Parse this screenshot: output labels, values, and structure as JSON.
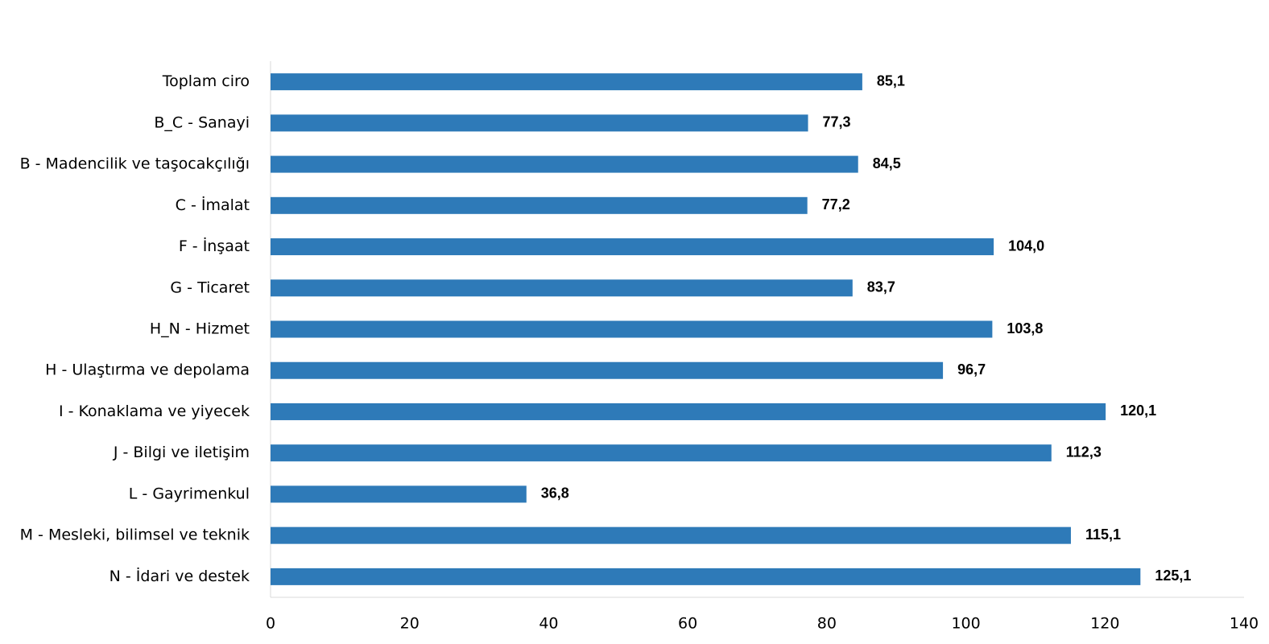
{
  "chart_data": {
    "type": "bar",
    "orientation": "horizontal",
    "categories": [
      "Toplam ciro",
      "B_C - Sanayi",
      "B - Madencilik ve taşocakçılığı",
      "C - İmalat",
      "F - İnşaat",
      "G - Ticaret",
      "H_N - Hizmet",
      "H - Ulaştırma ve depolama",
      "I - Konaklama ve yiyecek",
      "J - Bilgi ve iletişim",
      "L - Gayrimenkul",
      "M - Mesleki, bilimsel ve teknik",
      "N - İdari ve destek"
    ],
    "values": [
      85.1,
      77.3,
      84.5,
      77.2,
      104.0,
      83.7,
      103.8,
      96.7,
      120.1,
      112.3,
      36.8,
      115.1,
      125.1
    ],
    "value_labels": [
      "85,1",
      "77,3",
      "84,5",
      "77,2",
      "104,0",
      "83,7",
      "103,8",
      "96,7",
      "120,1",
      "112,3",
      "36,8",
      "115,1",
      "125,1"
    ],
    "color": "#2e7ab8",
    "xlim": [
      0,
      140
    ],
    "xticks": [
      0,
      20,
      40,
      60,
      80,
      100,
      120,
      140
    ],
    "grid": false
  }
}
